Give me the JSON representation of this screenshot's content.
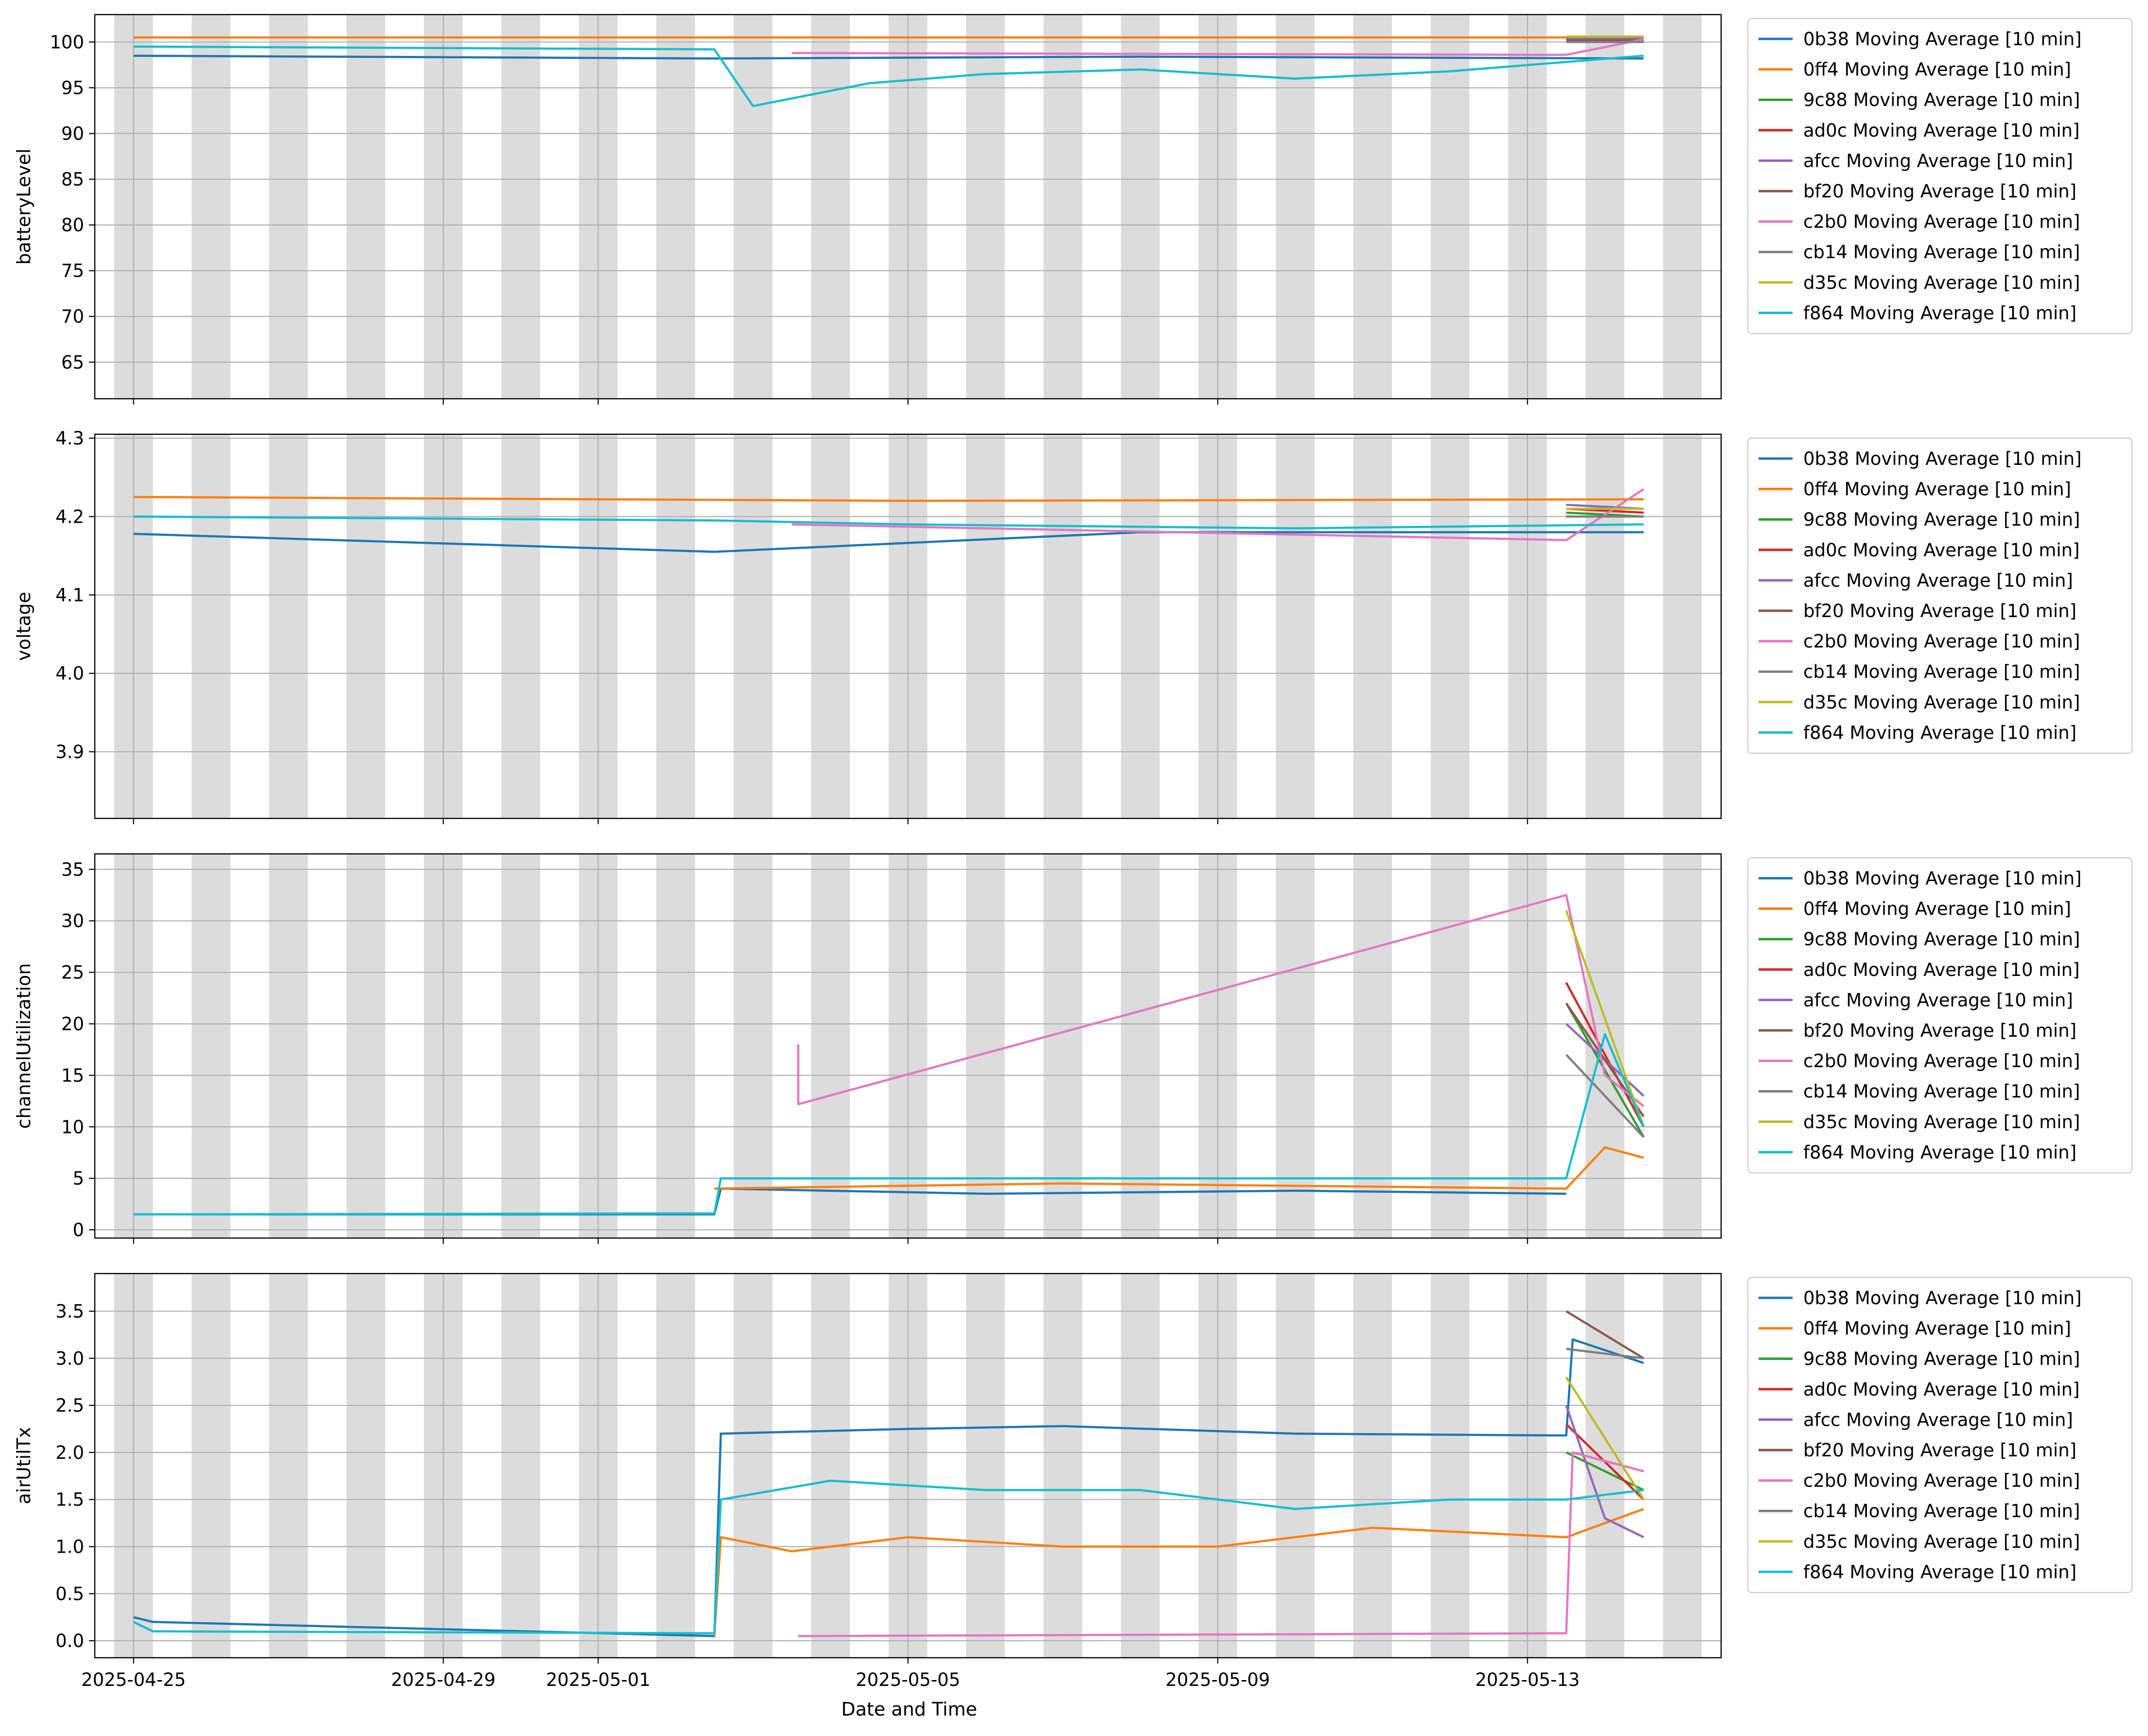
{
  "figure": {
    "xlabel": "Date and Time"
  },
  "chart_data": [
    {
      "type": "line",
      "ylabel": "batteryLevel",
      "ylim": [
        61,
        103
      ],
      "yticks": [
        65,
        70,
        75,
        80,
        85,
        90,
        95,
        100
      ],
      "xlim": [
        "2025-04-24T12:00",
        "2025-05-15T12:00"
      ],
      "xticks": [
        "2025-04-25",
        "2025-04-29",
        "2025-05-01",
        "2025-05-05",
        "2025-05-09",
        "2025-05-13"
      ],
      "show_xtick_labels": false,
      "grid": true,
      "legend": "outside-right",
      "series": [
        {
          "name": "0b38 Moving Average [10 min]",
          "color": "#1f77b4",
          "points": [
            [
              "2025-04-25T00:00",
              98.5
            ],
            [
              "2025-05-02T12:00",
              98.2
            ],
            [
              "2025-05-08T00:00",
              98.4
            ],
            [
              "2025-05-14T12:00",
              98.2
            ]
          ]
        },
        {
          "name": "0ff4 Moving Average [10 min]",
          "color": "#ff7f0e",
          "points": [
            [
              "2025-04-25T00:00",
              100.5
            ],
            [
              "2025-05-14T12:00",
              100.5
            ]
          ]
        },
        {
          "name": "9c88 Moving Average [10 min]",
          "color": "#2ca02c",
          "points": [
            [
              "2025-05-13T12:00",
              100.3
            ],
            [
              "2025-05-14T12:00",
              100.2
            ]
          ]
        },
        {
          "name": "ad0c Moving Average [10 min]",
          "color": "#d62728",
          "points": [
            [
              "2025-05-13T12:00",
              100.3
            ],
            [
              "2025-05-14T12:00",
              100.3
            ]
          ]
        },
        {
          "name": "afcc Moving Average [10 min]",
          "color": "#9467bd",
          "points": [
            [
              "2025-05-13T12:00",
              100.4
            ],
            [
              "2025-05-14T12:00",
              100.4
            ]
          ]
        },
        {
          "name": "bf20 Moving Average [10 min]",
          "color": "#8c564b",
          "points": [
            [
              "2025-05-13T12:00",
              100.2
            ],
            [
              "2025-05-14T12:00",
              100.2
            ]
          ]
        },
        {
          "name": "c2b0 Moving Average [10 min]",
          "color": "#e377c2",
          "points": [
            [
              "2025-05-03T12:00",
              98.8
            ],
            [
              "2025-05-13T12:00",
              98.6
            ],
            [
              "2025-05-14T12:00",
              100.3
            ]
          ]
        },
        {
          "name": "cb14 Moving Average [10 min]",
          "color": "#7f7f7f",
          "points": [
            [
              "2025-05-13T12:00",
              100.0
            ],
            [
              "2025-05-14T12:00",
              100.0
            ]
          ]
        },
        {
          "name": "d35c Moving Average [10 min]",
          "color": "#bcbd22",
          "points": [
            [
              "2025-05-13T12:00",
              100.6
            ],
            [
              "2025-05-14T12:00",
              100.6
            ]
          ]
        },
        {
          "name": "f864 Moving Average [10 min]",
          "color": "#17becf",
          "points": [
            [
              "2025-04-25T00:00",
              99.5
            ],
            [
              "2025-05-02T12:00",
              99.2
            ],
            [
              "2025-05-03T00:00",
              93.0
            ],
            [
              "2025-05-04T12:00",
              95.5
            ],
            [
              "2025-05-06T00:00",
              96.5
            ],
            [
              "2025-05-08T00:00",
              97.0
            ],
            [
              "2025-05-10T00:00",
              96.0
            ],
            [
              "2025-05-12T00:00",
              96.8
            ],
            [
              "2025-05-14T12:00",
              98.5
            ]
          ]
        }
      ]
    },
    {
      "type": "line",
      "ylabel": "voltage",
      "ylim": [
        3.815,
        4.305
      ],
      "yticks": [
        3.9,
        4.0,
        4.1,
        4.2,
        4.3
      ],
      "xlim": [
        "2025-04-24T12:00",
        "2025-05-15T12:00"
      ],
      "xticks": [
        "2025-04-25",
        "2025-04-29",
        "2025-05-01",
        "2025-05-05",
        "2025-05-09",
        "2025-05-13"
      ],
      "show_xtick_labels": false,
      "grid": true,
      "legend": "outside-right",
      "series": [
        {
          "name": "0b38 Moving Average [10 min]",
          "color": "#1f77b4",
          "points": [
            [
              "2025-04-25T00:00",
              4.178
            ],
            [
              "2025-05-02T12:00",
              4.155
            ],
            [
              "2025-05-08T00:00",
              4.18
            ],
            [
              "2025-05-14T12:00",
              4.18
            ]
          ]
        },
        {
          "name": "0ff4 Moving Average [10 min]",
          "color": "#ff7f0e",
          "points": [
            [
              "2025-04-25T00:00",
              4.225
            ],
            [
              "2025-05-05T00:00",
              4.22
            ],
            [
              "2025-05-14T12:00",
              4.222
            ]
          ]
        },
        {
          "name": "9c88 Moving Average [10 min]",
          "color": "#2ca02c",
          "points": [
            [
              "2025-05-13T12:00",
              4.205
            ],
            [
              "2025-05-14T12:00",
              4.2
            ]
          ]
        },
        {
          "name": "ad0c Moving Average [10 min]",
          "color": "#d62728",
          "points": [
            [
              "2025-05-13T12:00",
              4.21
            ],
            [
              "2025-05-14T12:00",
              4.205
            ]
          ]
        },
        {
          "name": "afcc Moving Average [10 min]",
          "color": "#9467bd",
          "points": [
            [
              "2025-05-13T12:00",
              4.215
            ],
            [
              "2025-05-14T12:00",
              4.21
            ]
          ]
        },
        {
          "name": "bf20 Moving Average [10 min]",
          "color": "#8c564b",
          "points": [
            [
              "2025-05-13T12:00",
              4.2
            ],
            [
              "2025-05-14T12:00",
              4.2
            ]
          ]
        },
        {
          "name": "c2b0 Moving Average [10 min]",
          "color": "#e377c2",
          "points": [
            [
              "2025-05-03T12:00",
              4.19
            ],
            [
              "2025-05-13T12:00",
              4.17
            ],
            [
              "2025-05-14T12:00",
              4.235
            ]
          ]
        },
        {
          "name": "cb14 Moving Average [10 min]",
          "color": "#7f7f7f",
          "points": [
            [
              "2025-05-13T12:00",
              4.2
            ],
            [
              "2025-05-14T12:00",
              4.2
            ]
          ]
        },
        {
          "name": "d35c Moving Average [10 min]",
          "color": "#bcbd22",
          "points": [
            [
              "2025-05-13T12:00",
              4.21
            ],
            [
              "2025-05-14T12:00",
              4.21
            ]
          ]
        },
        {
          "name": "f864 Moving Average [10 min]",
          "color": "#17becf",
          "points": [
            [
              "2025-04-25T00:00",
              4.2
            ],
            [
              "2025-05-02T12:00",
              4.195
            ],
            [
              "2025-05-05T00:00",
              4.19
            ],
            [
              "2025-05-10T00:00",
              4.185
            ],
            [
              "2025-05-14T12:00",
              4.19
            ]
          ]
        }
      ]
    },
    {
      "type": "line",
      "ylabel": "channelUtilization",
      "ylim": [
        -0.8,
        36.5
      ],
      "yticks": [
        0,
        5,
        10,
        15,
        20,
        25,
        30,
        35
      ],
      "xlim": [
        "2025-04-24T12:00",
        "2025-05-15T12:00"
      ],
      "xticks": [
        "2025-04-25",
        "2025-04-29",
        "2025-05-01",
        "2025-05-05",
        "2025-05-09",
        "2025-05-13"
      ],
      "show_xtick_labels": false,
      "grid": true,
      "legend": "outside-right",
      "series": [
        {
          "name": "0b38 Moving Average [10 min]",
          "color": "#1f77b4",
          "points": [
            [
              "2025-04-25T00:00",
              1.5
            ],
            [
              "2025-05-02T12:00",
              1.5
            ],
            [
              "2025-05-02T14:00",
              4.0
            ],
            [
              "2025-05-06T00:00",
              3.5
            ],
            [
              "2025-05-10T00:00",
              3.8
            ],
            [
              "2025-05-13T12:00",
              3.5
            ]
          ]
        },
        {
          "name": "0ff4 Moving Average [10 min]",
          "color": "#ff7f0e",
          "points": [
            [
              "2025-05-02T12:00",
              4.0
            ],
            [
              "2025-05-07T00:00",
              4.5
            ],
            [
              "2025-05-13T12:00",
              4.0
            ],
            [
              "2025-05-14T00:00",
              8.0
            ],
            [
              "2025-05-14T12:00",
              7.0
            ]
          ]
        },
        {
          "name": "9c88 Moving Average [10 min]",
          "color": "#2ca02c",
          "points": [
            [
              "2025-05-13T12:00",
              22.0
            ],
            [
              "2025-05-14T12:00",
              9.0
            ]
          ]
        },
        {
          "name": "ad0c Moving Average [10 min]",
          "color": "#d62728",
          "points": [
            [
              "2025-05-13T12:00",
              24.0
            ],
            [
              "2025-05-14T12:00",
              10.0
            ]
          ]
        },
        {
          "name": "afcc Moving Average [10 min]",
          "color": "#9467bd",
          "points": [
            [
              "2025-05-13T12:00",
              20.0
            ],
            [
              "2025-05-14T12:00",
              13.0
            ]
          ]
        },
        {
          "name": "bf20 Moving Average [10 min]",
          "color": "#8c564b",
          "points": [
            [
              "2025-05-13T12:00",
              22.0
            ],
            [
              "2025-05-14T12:00",
              11.0
            ]
          ]
        },
        {
          "name": "c2b0 Moving Average [10 min]",
          "color": "#e377c2",
          "points": [
            [
              "2025-05-03T14:00",
              18.0
            ],
            [
              "2025-05-03T14:00",
              12.2
            ],
            [
              "2025-05-13T12:00",
              32.5
            ],
            [
              "2025-05-14T00:00",
              15.0
            ],
            [
              "2025-05-14T12:00",
              12.0
            ]
          ]
        },
        {
          "name": "cb14 Moving Average [10 min]",
          "color": "#7f7f7f",
          "points": [
            [
              "2025-05-13T12:00",
              17.0
            ],
            [
              "2025-05-14T12:00",
              9.0
            ]
          ]
        },
        {
          "name": "d35c Moving Average [10 min]",
          "color": "#bcbd22",
          "points": [
            [
              "2025-05-13T12:00",
              31.0
            ],
            [
              "2025-05-14T12:00",
              10.0
            ]
          ]
        },
        {
          "name": "f864 Moving Average [10 min]",
          "color": "#17becf",
          "points": [
            [
              "2025-04-25T00:00",
              1.5
            ],
            [
              "2025-05-02T12:00",
              1.6
            ],
            [
              "2025-05-02T14:00",
              5.0
            ],
            [
              "2025-05-07T00:00",
              5.0
            ],
            [
              "2025-05-13T12:00",
              5.0
            ],
            [
              "2025-05-14T00:00",
              19.0
            ],
            [
              "2025-05-14T12:00",
              10.0
            ]
          ]
        }
      ]
    },
    {
      "type": "line",
      "ylabel": "airUtilTx",
      "ylim": [
        -0.18,
        3.9
      ],
      "yticks": [
        0.0,
        0.5,
        1.0,
        1.5,
        2.0,
        2.5,
        3.0,
        3.5
      ],
      "xlim": [
        "2025-04-24T12:00",
        "2025-05-15T12:00"
      ],
      "xticks": [
        "2025-04-25",
        "2025-04-29",
        "2025-05-01",
        "2025-05-05",
        "2025-05-09",
        "2025-05-13"
      ],
      "show_xtick_labels": true,
      "grid": true,
      "legend": "outside-right",
      "series": [
        {
          "name": "0b38 Moving Average [10 min]",
          "color": "#1f77b4",
          "points": [
            [
              "2025-04-25T00:00",
              0.25
            ],
            [
              "2025-04-25T06:00",
              0.2
            ],
            [
              "2025-05-02T12:00",
              0.05
            ],
            [
              "2025-05-02T14:00",
              2.2
            ],
            [
              "2025-05-05T00:00",
              2.25
            ],
            [
              "2025-05-07T00:00",
              2.28
            ],
            [
              "2025-05-10T00:00",
              2.2
            ],
            [
              "2025-05-13T12:00",
              2.18
            ],
            [
              "2025-05-13T14:00",
              3.2
            ],
            [
              "2025-05-14T12:00",
              2.95
            ]
          ]
        },
        {
          "name": "0ff4 Moving Average [10 min]",
          "color": "#ff7f0e",
          "points": [
            [
              "2025-05-02T12:00",
              0.05
            ],
            [
              "2025-05-02T14:00",
              1.1
            ],
            [
              "2025-05-03T12:00",
              0.95
            ],
            [
              "2025-05-05T00:00",
              1.1
            ],
            [
              "2025-05-07T00:00",
              1.0
            ],
            [
              "2025-05-09T00:00",
              1.0
            ],
            [
              "2025-05-11T00:00",
              1.2
            ],
            [
              "2025-05-13T12:00",
              1.1
            ],
            [
              "2025-05-14T12:00",
              1.4
            ]
          ]
        },
        {
          "name": "9c88 Moving Average [10 min]",
          "color": "#2ca02c",
          "points": [
            [
              "2025-05-13T12:00",
              2.0
            ],
            [
              "2025-05-14T12:00",
              1.6
            ]
          ]
        },
        {
          "name": "ad0c Moving Average [10 min]",
          "color": "#d62728",
          "points": [
            [
              "2025-05-13T12:00",
              2.3
            ],
            [
              "2025-05-14T12:00",
              1.5
            ]
          ]
        },
        {
          "name": "afcc Moving Average [10 min]",
          "color": "#9467bd",
          "points": [
            [
              "2025-05-13T12:00",
              2.5
            ],
            [
              "2025-05-14T00:00",
              1.3
            ],
            [
              "2025-05-14T12:00",
              1.1
            ]
          ]
        },
        {
          "name": "bf20 Moving Average [10 min]",
          "color": "#8c564b",
          "points": [
            [
              "2025-05-13T12:00",
              3.5
            ],
            [
              "2025-05-14T12:00",
              3.0
            ]
          ]
        },
        {
          "name": "c2b0 Moving Average [10 min]",
          "color": "#e377c2",
          "points": [
            [
              "2025-05-03T14:00",
              0.05
            ],
            [
              "2025-05-13T12:00",
              0.08
            ],
            [
              "2025-05-13T14:00",
              2.0
            ],
            [
              "2025-05-14T12:00",
              1.8
            ]
          ]
        },
        {
          "name": "cb14 Moving Average [10 min]",
          "color": "#7f7f7f",
          "points": [
            [
              "2025-05-13T12:00",
              3.1
            ],
            [
              "2025-05-14T12:00",
              3.0
            ]
          ]
        },
        {
          "name": "d35c Moving Average [10 min]",
          "color": "#bcbd22",
          "points": [
            [
              "2025-05-13T12:00",
              2.8
            ],
            [
              "2025-05-14T12:00",
              1.5
            ]
          ]
        },
        {
          "name": "f864 Moving Average [10 min]",
          "color": "#17becf",
          "points": [
            [
              "2025-04-25T00:00",
              0.2
            ],
            [
              "2025-04-25T06:00",
              0.1
            ],
            [
              "2025-05-02T12:00",
              0.08
            ],
            [
              "2025-05-02T14:00",
              1.5
            ],
            [
              "2025-05-04T00:00",
              1.7
            ],
            [
              "2025-05-06T00:00",
              1.6
            ],
            [
              "2025-05-08T00:00",
              1.6
            ],
            [
              "2025-05-10T00:00",
              1.4
            ],
            [
              "2025-05-12T00:00",
              1.5
            ],
            [
              "2025-05-13T12:00",
              1.5
            ],
            [
              "2025-05-14T12:00",
              1.6
            ]
          ]
        }
      ]
    }
  ]
}
